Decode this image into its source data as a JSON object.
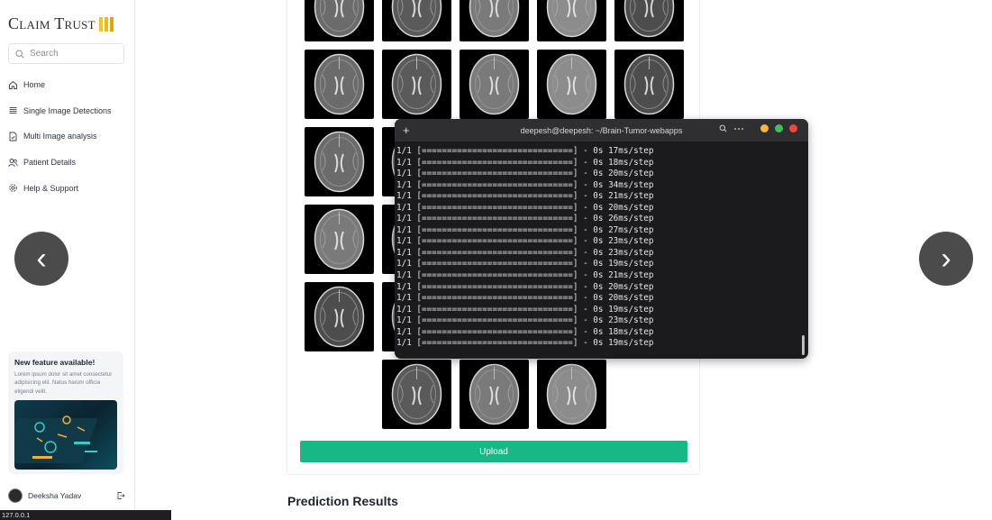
{
  "app": {
    "logo_text": "Claim Trust",
    "logo_colors": [
      "#f5c518",
      "#f0b90b",
      "#e3a60a"
    ]
  },
  "sidebar": {
    "search_placeholder": "Search",
    "items": [
      {
        "label": "Home",
        "icon": "home-icon"
      },
      {
        "label": "Single Image Detections",
        "icon": "list-icon"
      },
      {
        "label": "Multi Image analysis",
        "icon": "document-icon"
      },
      {
        "label": "Patient Details",
        "icon": "users-icon"
      },
      {
        "label": "Help & Support",
        "icon": "gear-icon"
      }
    ],
    "promo": {
      "title": "New feature available!",
      "body": "Lorem ipsum dolor sit amet consectetur adipisicing elit. Natus harum officia eligendi velit."
    },
    "user": {
      "name": "Deeksha Yadav"
    }
  },
  "status_bar": {
    "url": "127.0.0.1"
  },
  "carousel": {
    "prev": "‹",
    "next": "›"
  },
  "main": {
    "upload_label": "Upload",
    "prediction_title": "Prediction Results"
  },
  "terminal": {
    "title": "deepesh@deepesh: ~/Brain-Tumor-webapps",
    "lines": [
      "1/1 [==============================] - 0s 17ms/step",
      "1/1 [==============================] - 0s 18ms/step",
      "1/1 [==============================] - 0s 20ms/step",
      "1/1 [==============================] - 0s 34ms/step",
      "1/1 [==============================] - 0s 21ms/step",
      "1/1 [==============================] - 0s 20ms/step",
      "1/1 [==============================] - 0s 26ms/step",
      "1/1 [==============================] - 0s 27ms/step",
      "1/1 [==============================] - 0s 23ms/step",
      "1/1 [==============================] - 0s 23ms/step",
      "1/1 [==============================] - 0s 19ms/step",
      "1/1 [==============================] - 0s 21ms/step",
      "1/1 [==============================] - 0s 20ms/step",
      "1/1 [==============================] - 0s 20ms/step",
      "1/1 [==============================] - 0s 19ms/step",
      "1/1 [==============================] - 0s 23ms/step",
      "1/1 [==============================] - 0s 18ms/step",
      "1/1 [==============================] - 0s 19ms/step"
    ],
    "window_colors": {
      "minimize": "#f6b73c",
      "maximize": "#3fc05a",
      "close": "#f0453f"
    }
  }
}
